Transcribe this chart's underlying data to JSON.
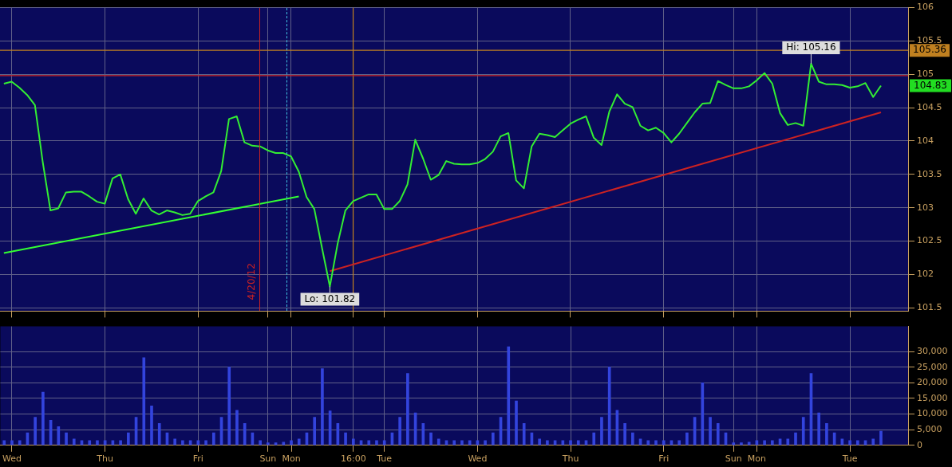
{
  "chart_data": [
    {
      "type": "line",
      "ylim": [
        101.45,
        106
      ],
      "yticks": [
        101.5,
        102,
        102.5,
        103,
        103.5,
        104,
        104.5,
        105,
        105.5,
        106
      ],
      "categories": [
        null,
        "Wed",
        null,
        null,
        null,
        null,
        null,
        null,
        null,
        null,
        null,
        null,
        null,
        "Thu",
        null,
        null,
        null,
        null,
        null,
        null,
        null,
        null,
        null,
        null,
        null,
        "Fri",
        null,
        null,
        null,
        null,
        null,
        null,
        null,
        null,
        "Sun",
        null,
        null,
        "Mon",
        null,
        null,
        null,
        null,
        null,
        null,
        null,
        "16:00",
        null,
        null,
        null,
        "Tue",
        null,
        null,
        null,
        null,
        null,
        null,
        null,
        null,
        null,
        null,
        null,
        "Wed",
        null,
        null,
        null,
        null,
        null,
        null,
        null,
        null,
        null,
        null,
        null,
        "Thu",
        null,
        null,
        null,
        null,
        null,
        null,
        null,
        null,
        null,
        null,
        null,
        "Fri",
        null,
        null,
        null,
        null,
        null,
        null,
        null,
        null,
        "Sun",
        null,
        null,
        "Mon",
        null,
        null,
        null,
        null,
        null,
        null,
        null,
        null,
        null,
        null,
        null,
        "Tue",
        null,
        null,
        null,
        null,
        null,
        null,
        null
      ],
      "grid": true,
      "legend": false,
      "tick_labels": "y",
      "marker": "none",
      "series": [
        {
          "color": "#33ee33",
          "values": [
            104.86,
            104.89,
            104.8,
            104.69,
            104.54,
            103.69,
            102.96,
            102.99,
            103.23,
            103.24,
            103.24,
            103.17,
            103.09,
            103.06,
            103.44,
            103.5,
            103.13,
            102.91,
            103.14,
            102.96,
            102.9,
            102.96,
            102.93,
            102.89,
            102.91,
            103.1,
            103.17,
            103.23,
            103.55,
            104.33,
            104.37,
            103.98,
            103.93,
            103.92,
            103.86,
            103.82,
            103.82,
            103.77,
            103.54,
            103.16,
            102.98,
            102.39,
            101.82,
            102.46,
            102.96,
            103.1,
            103.15,
            103.2,
            103.2,
            102.98,
            102.98,
            103.1,
            103.35,
            104.02,
            103.74,
            103.42,
            103.49,
            103.7,
            103.66,
            103.65,
            103.65,
            103.67,
            103.73,
            103.84,
            104.07,
            104.12,
            103.41,
            103.29,
            103.92,
            104.11,
            104.09,
            104.06,
            104.16,
            104.26,
            104.32,
            104.37,
            104.05,
            103.94,
            104.44,
            104.7,
            104.56,
            104.51,
            104.23,
            104.16,
            104.2,
            104.12,
            103.98,
            104.11,
            104.27,
            104.43,
            104.56,
            104.57,
            104.9,
            104.84,
            104.79,
            104.79,
            104.82,
            104.91,
            105.02,
            104.86,
            104.42,
            104.24,
            104.27,
            104.23,
            105.16,
            104.89,
            104.85,
            104.85,
            104.84,
            104.8,
            104.82,
            104.87,
            104.66,
            104.83,
            null,
            null,
            null
          ]
        },
        {
          "type": "line",
          "color": "#33ff33",
          "values": [
            102.32,
            null,
            null,
            null,
            null,
            null,
            null,
            null,
            null,
            null,
            null,
            null,
            null,
            null,
            null,
            null,
            null,
            null,
            null,
            null,
            null,
            null,
            null,
            null,
            null,
            null,
            null,
            null,
            null,
            null,
            null,
            null,
            null,
            null,
            null,
            null,
            null,
            null,
            103.17,
            null,
            null,
            null,
            null,
            null,
            null,
            null,
            null,
            null,
            null,
            null,
            null,
            null,
            null,
            null,
            null,
            null,
            null,
            null,
            null,
            null,
            null,
            null,
            null,
            null,
            null,
            null,
            null,
            null,
            null,
            null,
            null,
            null,
            null,
            null,
            null,
            null,
            null,
            null,
            null,
            null,
            null,
            null,
            null,
            null,
            null,
            null,
            null,
            null,
            null,
            null,
            null,
            null,
            null,
            null,
            null,
            null,
            null,
            null,
            null,
            null,
            null,
            null,
            null,
            null,
            null,
            null,
            null,
            null,
            null,
            null,
            null,
            null,
            null,
            null,
            null,
            null,
            null
          ]
        },
        {
          "type": "line",
          "color": "#cc2222",
          "values": [
            null,
            null,
            null,
            null,
            null,
            null,
            null,
            null,
            null,
            null,
            null,
            null,
            null,
            null,
            null,
            null,
            null,
            null,
            null,
            null,
            null,
            null,
            null,
            null,
            null,
            null,
            null,
            null,
            null,
            null,
            null,
            null,
            null,
            null,
            null,
            null,
            null,
            null,
            null,
            null,
            null,
            null,
            102.05,
            null,
            null,
            null,
            null,
            null,
            null,
            null,
            null,
            null,
            null,
            null,
            null,
            null,
            null,
            null,
            null,
            null,
            null,
            null,
            null,
            null,
            null,
            null,
            null,
            null,
            null,
            null,
            null,
            null,
            null,
            null,
            null,
            null,
            null,
            null,
            null,
            null,
            null,
            null,
            null,
            null,
            null,
            null,
            null,
            null,
            null,
            null,
            null,
            null,
            null,
            null,
            null,
            null,
            null,
            null,
            null,
            null,
            null,
            null,
            null,
            null,
            null,
            null,
            null,
            null,
            null,
            null,
            null,
            null,
            null,
            104.43,
            null,
            null,
            null
          ]
        }
      ],
      "ref_lines": [
        {
          "axis": "y",
          "value": 104.98,
          "color": "#cc2222"
        },
        {
          "axis": "y",
          "value": 105.36,
          "label": "105.36",
          "color": "#c08020"
        },
        {
          "axis": "x",
          "value": "16:00",
          "color": "#c08020"
        }
      ],
      "annotations": [
        "4/20/12",
        "104.83",
        {
          "text": "Hi: 105.16",
          "y": 105.16
        },
        {
          "text": "Lo: 101.82",
          "y": 101.82
        }
      ]
    },
    {
      "type": "bar",
      "color": "#3344dd",
      "ylim": [
        0,
        38000
      ],
      "yticks": [
        0,
        {
          "value": 5000,
          "label": "5,000"
        },
        {
          "value": 10000,
          "label": "10,000"
        },
        {
          "value": 15000,
          "label": "15,000"
        },
        {
          "value": 20000,
          "label": "20,000"
        },
        {
          "value": 25000,
          "label": "25,000"
        },
        {
          "value": 30000,
          "label": "30,000"
        }
      ],
      "categories": [
        null,
        "Wed",
        null,
        null,
        null,
        null,
        null,
        null,
        null,
        null,
        null,
        null,
        null,
        "Thu",
        null,
        null,
        null,
        null,
        null,
        null,
        null,
        null,
        null,
        null,
        null,
        "Fri",
        null,
        null,
        null,
        null,
        null,
        null,
        null,
        null,
        "Sun",
        null,
        null,
        "Mon",
        null,
        null,
        null,
        null,
        null,
        null,
        null,
        "16:00",
        null,
        null,
        null,
        "Tue",
        null,
        null,
        null,
        null,
        null,
        null,
        null,
        null,
        null,
        null,
        null,
        "Wed",
        null,
        null,
        null,
        null,
        null,
        null,
        null,
        null,
        null,
        null,
        null,
        "Thu",
        null,
        null,
        null,
        null,
        null,
        null,
        null,
        null,
        null,
        null,
        null,
        "Fri",
        null,
        null,
        null,
        null,
        null,
        null,
        null,
        null,
        "Sun",
        null,
        null,
        "Mon",
        null,
        null,
        null,
        null,
        null,
        null,
        null,
        null,
        null,
        null,
        null,
        "Tue",
        null,
        null,
        null,
        null,
        null,
        null,
        null
      ],
      "grid": true,
      "legend": false,
      "values": [
        1500,
        1500,
        1500,
        4000,
        9000,
        17000,
        8000,
        6000,
        4000,
        2000,
        1500,
        1500,
        1500,
        1500,
        1500,
        1500,
        4000,
        9000,
        28000,
        12600,
        7000,
        4000,
        2000,
        1500,
        1500,
        1500,
        1500,
        4000,
        9000,
        25000,
        11200,
        7000,
        4000,
        1500,
        800,
        800,
        1000,
        1500,
        2000,
        4000,
        9000,
        24500,
        11000,
        7000,
        4000,
        2000,
        1500,
        1500,
        1500,
        1500,
        4000,
        9000,
        23000,
        10400,
        7000,
        4000,
        2000,
        1500,
        1500,
        1500,
        1500,
        1500,
        1500,
        4000,
        9000,
        31500,
        14200,
        7000,
        4000,
        2000,
        1500,
        1500,
        1500,
        1500,
        1500,
        1500,
        4000,
        9000,
        25000,
        11200,
        7000,
        4000,
        2000,
        1500,
        1500,
        1500,
        1500,
        1500,
        4000,
        9000,
        20000,
        9000,
        7000,
        4000,
        800,
        800,
        1000,
        1500,
        1500,
        1500,
        2000,
        2000,
        4000,
        9000,
        23000,
        10400,
        7000,
        4000,
        2000,
        1500,
        1500,
        1500,
        2000,
        4500,
        null,
        null,
        null
      ]
    }
  ]
}
